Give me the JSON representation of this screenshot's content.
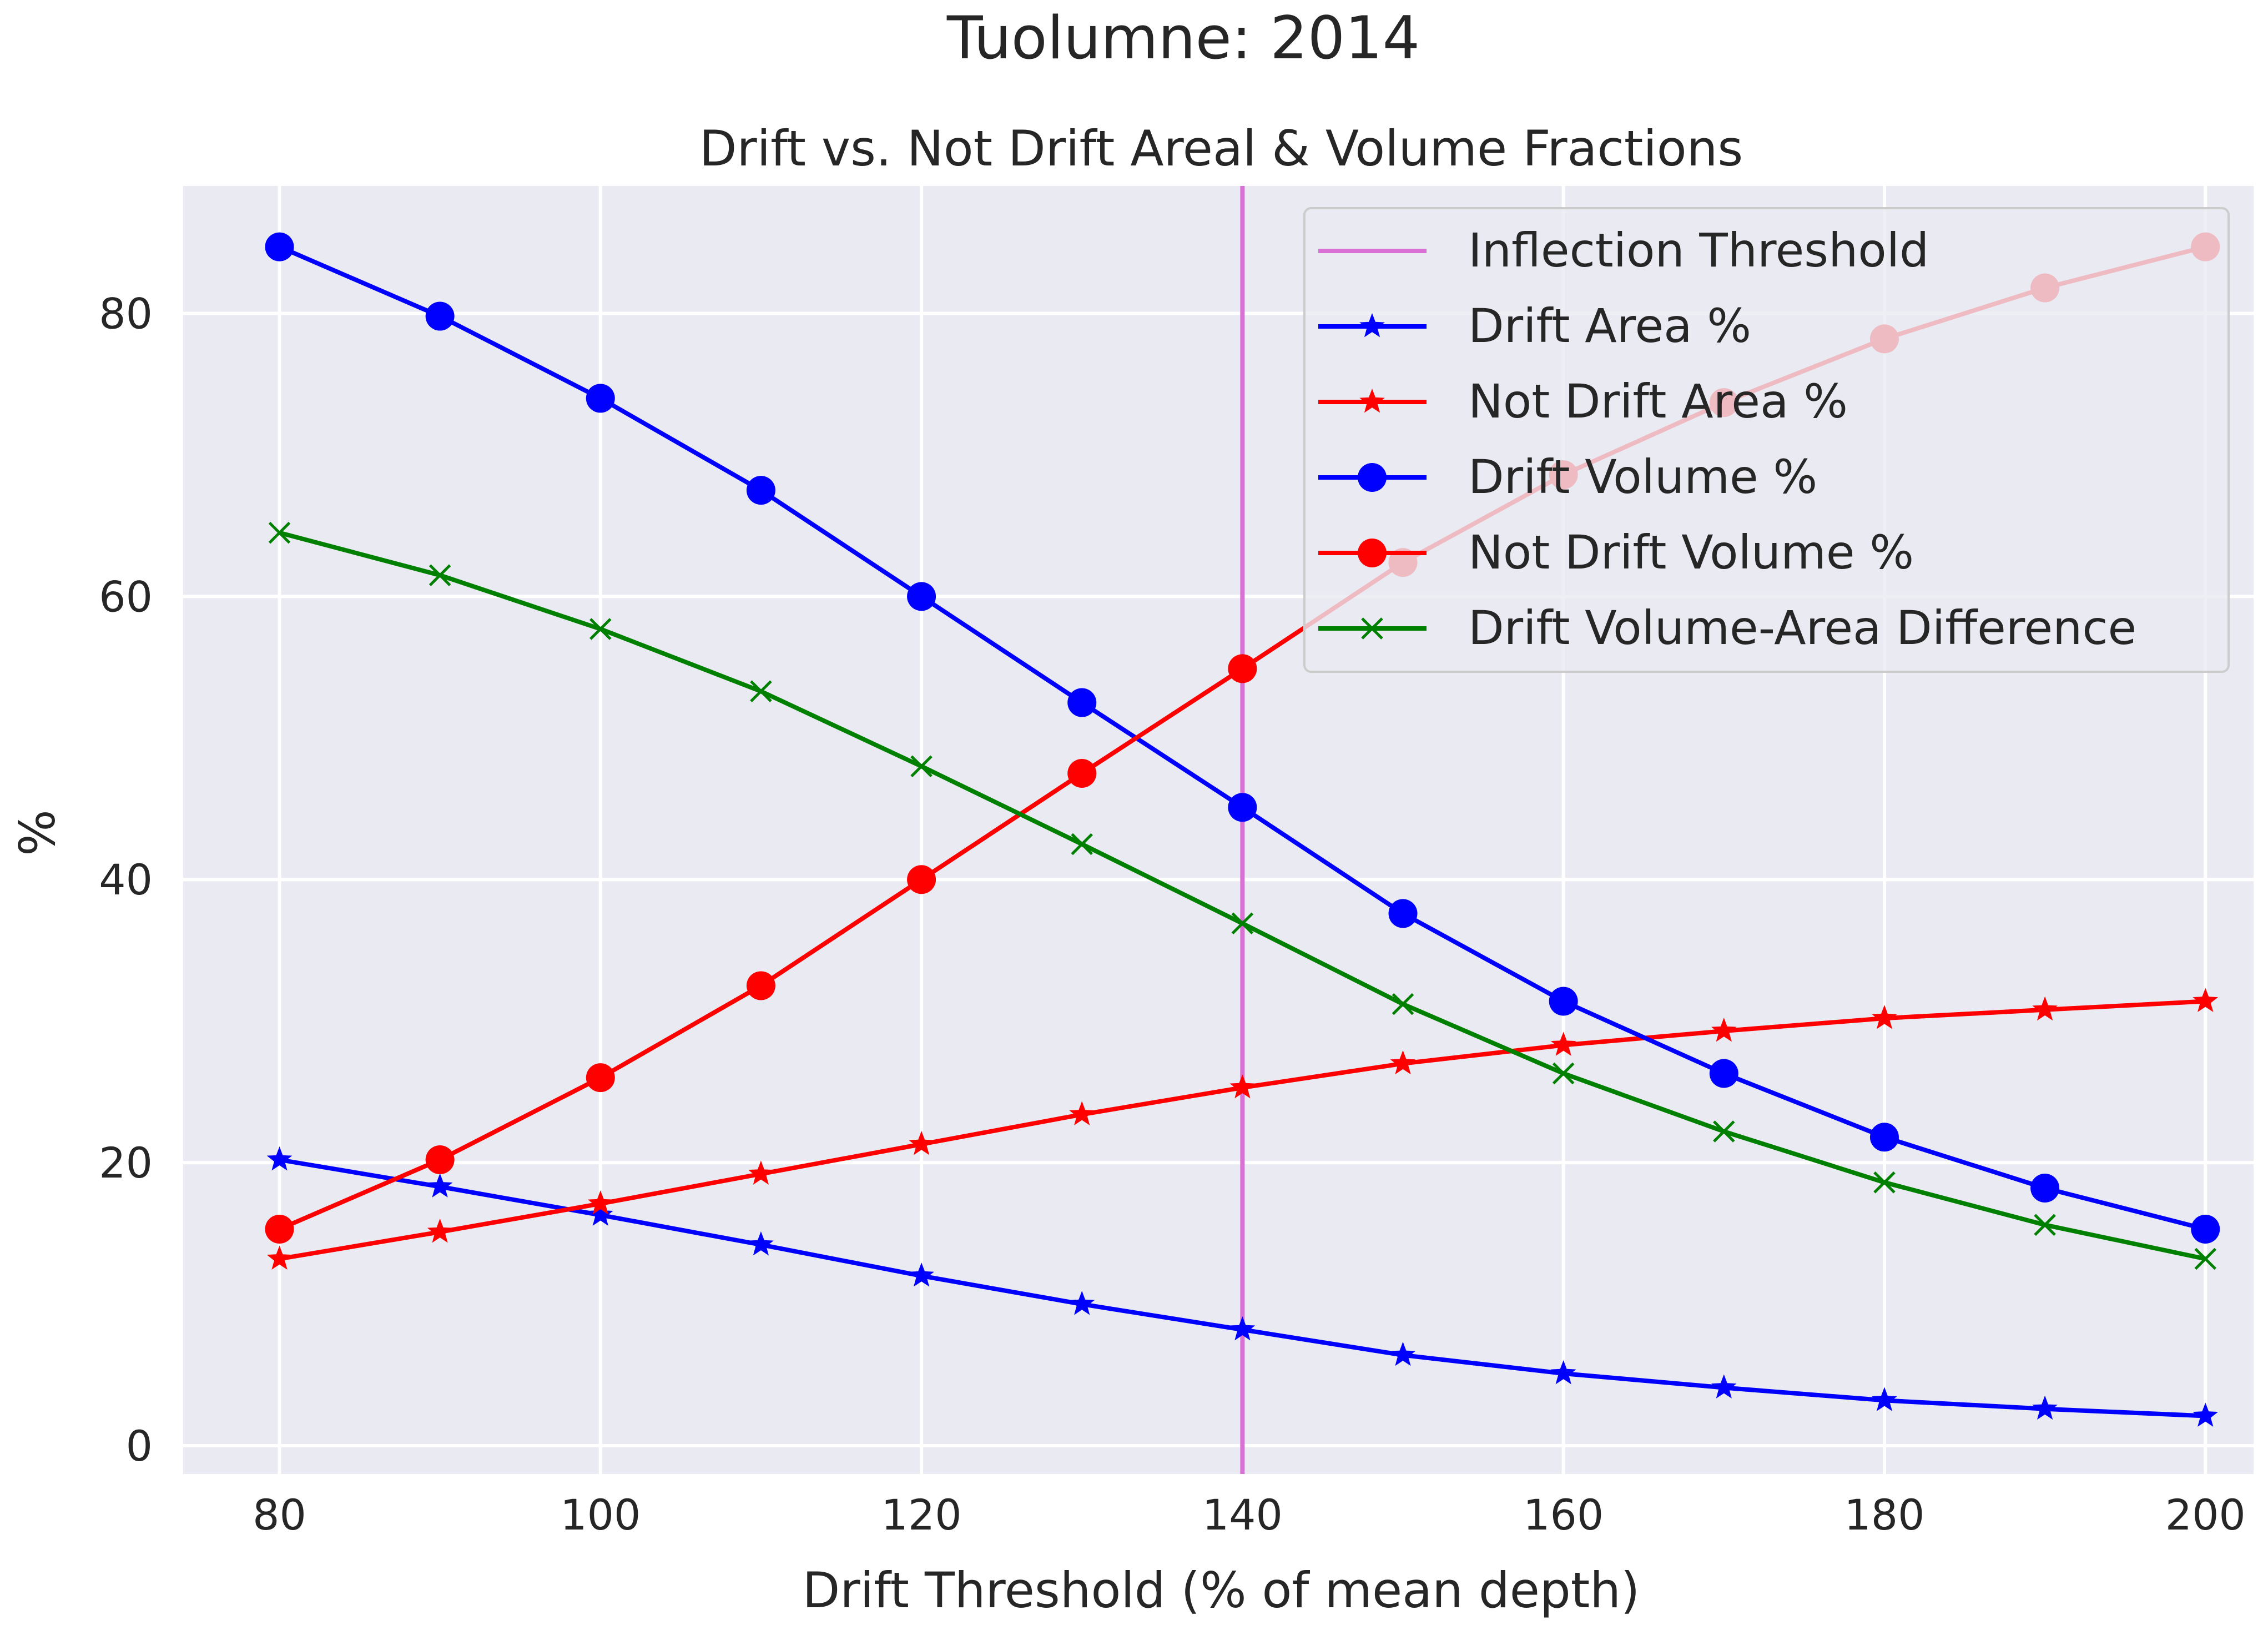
{
  "chart_data": {
    "type": "line",
    "suptitle": "Tuolumne: 2014",
    "title": "Drift vs. Not Drift Areal & Volume Fractions",
    "xlabel": "Drift Threshold (% of mean depth)",
    "ylabel": "%",
    "xlim": [
      74,
      203
    ],
    "ylim": [
      -2,
      89
    ],
    "xticks": [
      80,
      100,
      120,
      140,
      160,
      180,
      200
    ],
    "yticks": [
      0,
      20,
      40,
      60,
      80
    ],
    "grid": true,
    "legend_position": "upper right",
    "x": [
      80,
      90,
      100,
      110,
      120,
      130,
      140,
      150,
      160,
      170,
      180,
      190,
      200
    ],
    "vlines": [
      {
        "name": "Inflection Threshold",
        "x": 140,
        "color": "#da70d6"
      }
    ],
    "series": [
      {
        "name": "Drift Area %",
        "color": "#0000ff",
        "marker": "star",
        "values": [
          20.2,
          18.3,
          16.3,
          14.2,
          12.0,
          10.0,
          8.2,
          6.4,
          5.1,
          4.1,
          3.2,
          2.6,
          2.1
        ]
      },
      {
        "name": "Not Drift Area %",
        "color": "#ff0000",
        "marker": "star",
        "values": [
          13.2,
          15.1,
          17.1,
          19.2,
          21.3,
          23.4,
          25.3,
          27.0,
          28.3,
          29.3,
          30.2,
          30.8,
          31.4
        ]
      },
      {
        "name": "Drift Volume %",
        "color": "#0000ff",
        "marker": "circle",
        "values": [
          84.7,
          79.8,
          74.0,
          67.5,
          60.0,
          52.5,
          45.1,
          37.6,
          31.4,
          26.3,
          21.8,
          18.2,
          15.3
        ]
      },
      {
        "name": "Not Drift Volume %",
        "color": "#ff0000",
        "marker": "circle",
        "values": [
          15.3,
          20.2,
          26.0,
          32.5,
          40.0,
          47.5,
          54.9,
          62.4,
          68.6,
          73.7,
          78.2,
          81.8,
          84.7
        ]
      },
      {
        "name": "Drift Volume-Area Difference",
        "color": "#008000",
        "marker": "x",
        "values": [
          64.5,
          61.5,
          57.7,
          53.3,
          48.0,
          42.5,
          36.9,
          31.2,
          26.3,
          22.2,
          18.6,
          15.6,
          13.2
        ]
      }
    ]
  }
}
